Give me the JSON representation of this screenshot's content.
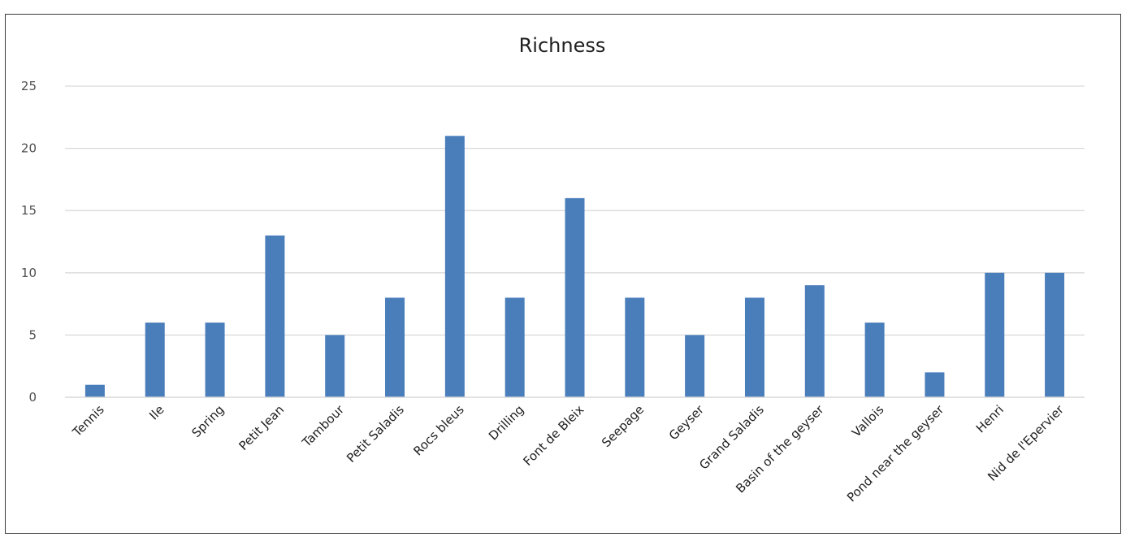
{
  "chart_data": {
    "type": "bar",
    "title": "Richness",
    "xlabel": "",
    "ylabel": "",
    "categories": [
      "Tennis",
      "Ile",
      "Spring",
      "Petit Jean",
      "Tambour",
      "Petit Saladis",
      "Rocs bleus",
      "Drilling",
      "Font de Bleix",
      "Seepage",
      "Geyser",
      "Grand Saladis",
      "Basin of the geyser",
      "Vallois",
      "Pond near the geyser",
      "Henri",
      "Nid de l'Epervier"
    ],
    "values": [
      1,
      6,
      6,
      13,
      5,
      8,
      21,
      8,
      16,
      8,
      5,
      8,
      9,
      6,
      2,
      10,
      10
    ],
    "ylim": [
      0,
      25
    ],
    "yticks": [
      "0",
      "5",
      "10",
      "15",
      "20",
      "25"
    ],
    "grid": true,
    "legend": "none",
    "colors": {
      "bar": "#4a7ebb",
      "grid": "#d9d9d9",
      "frame": "#3a3a3a"
    }
  }
}
